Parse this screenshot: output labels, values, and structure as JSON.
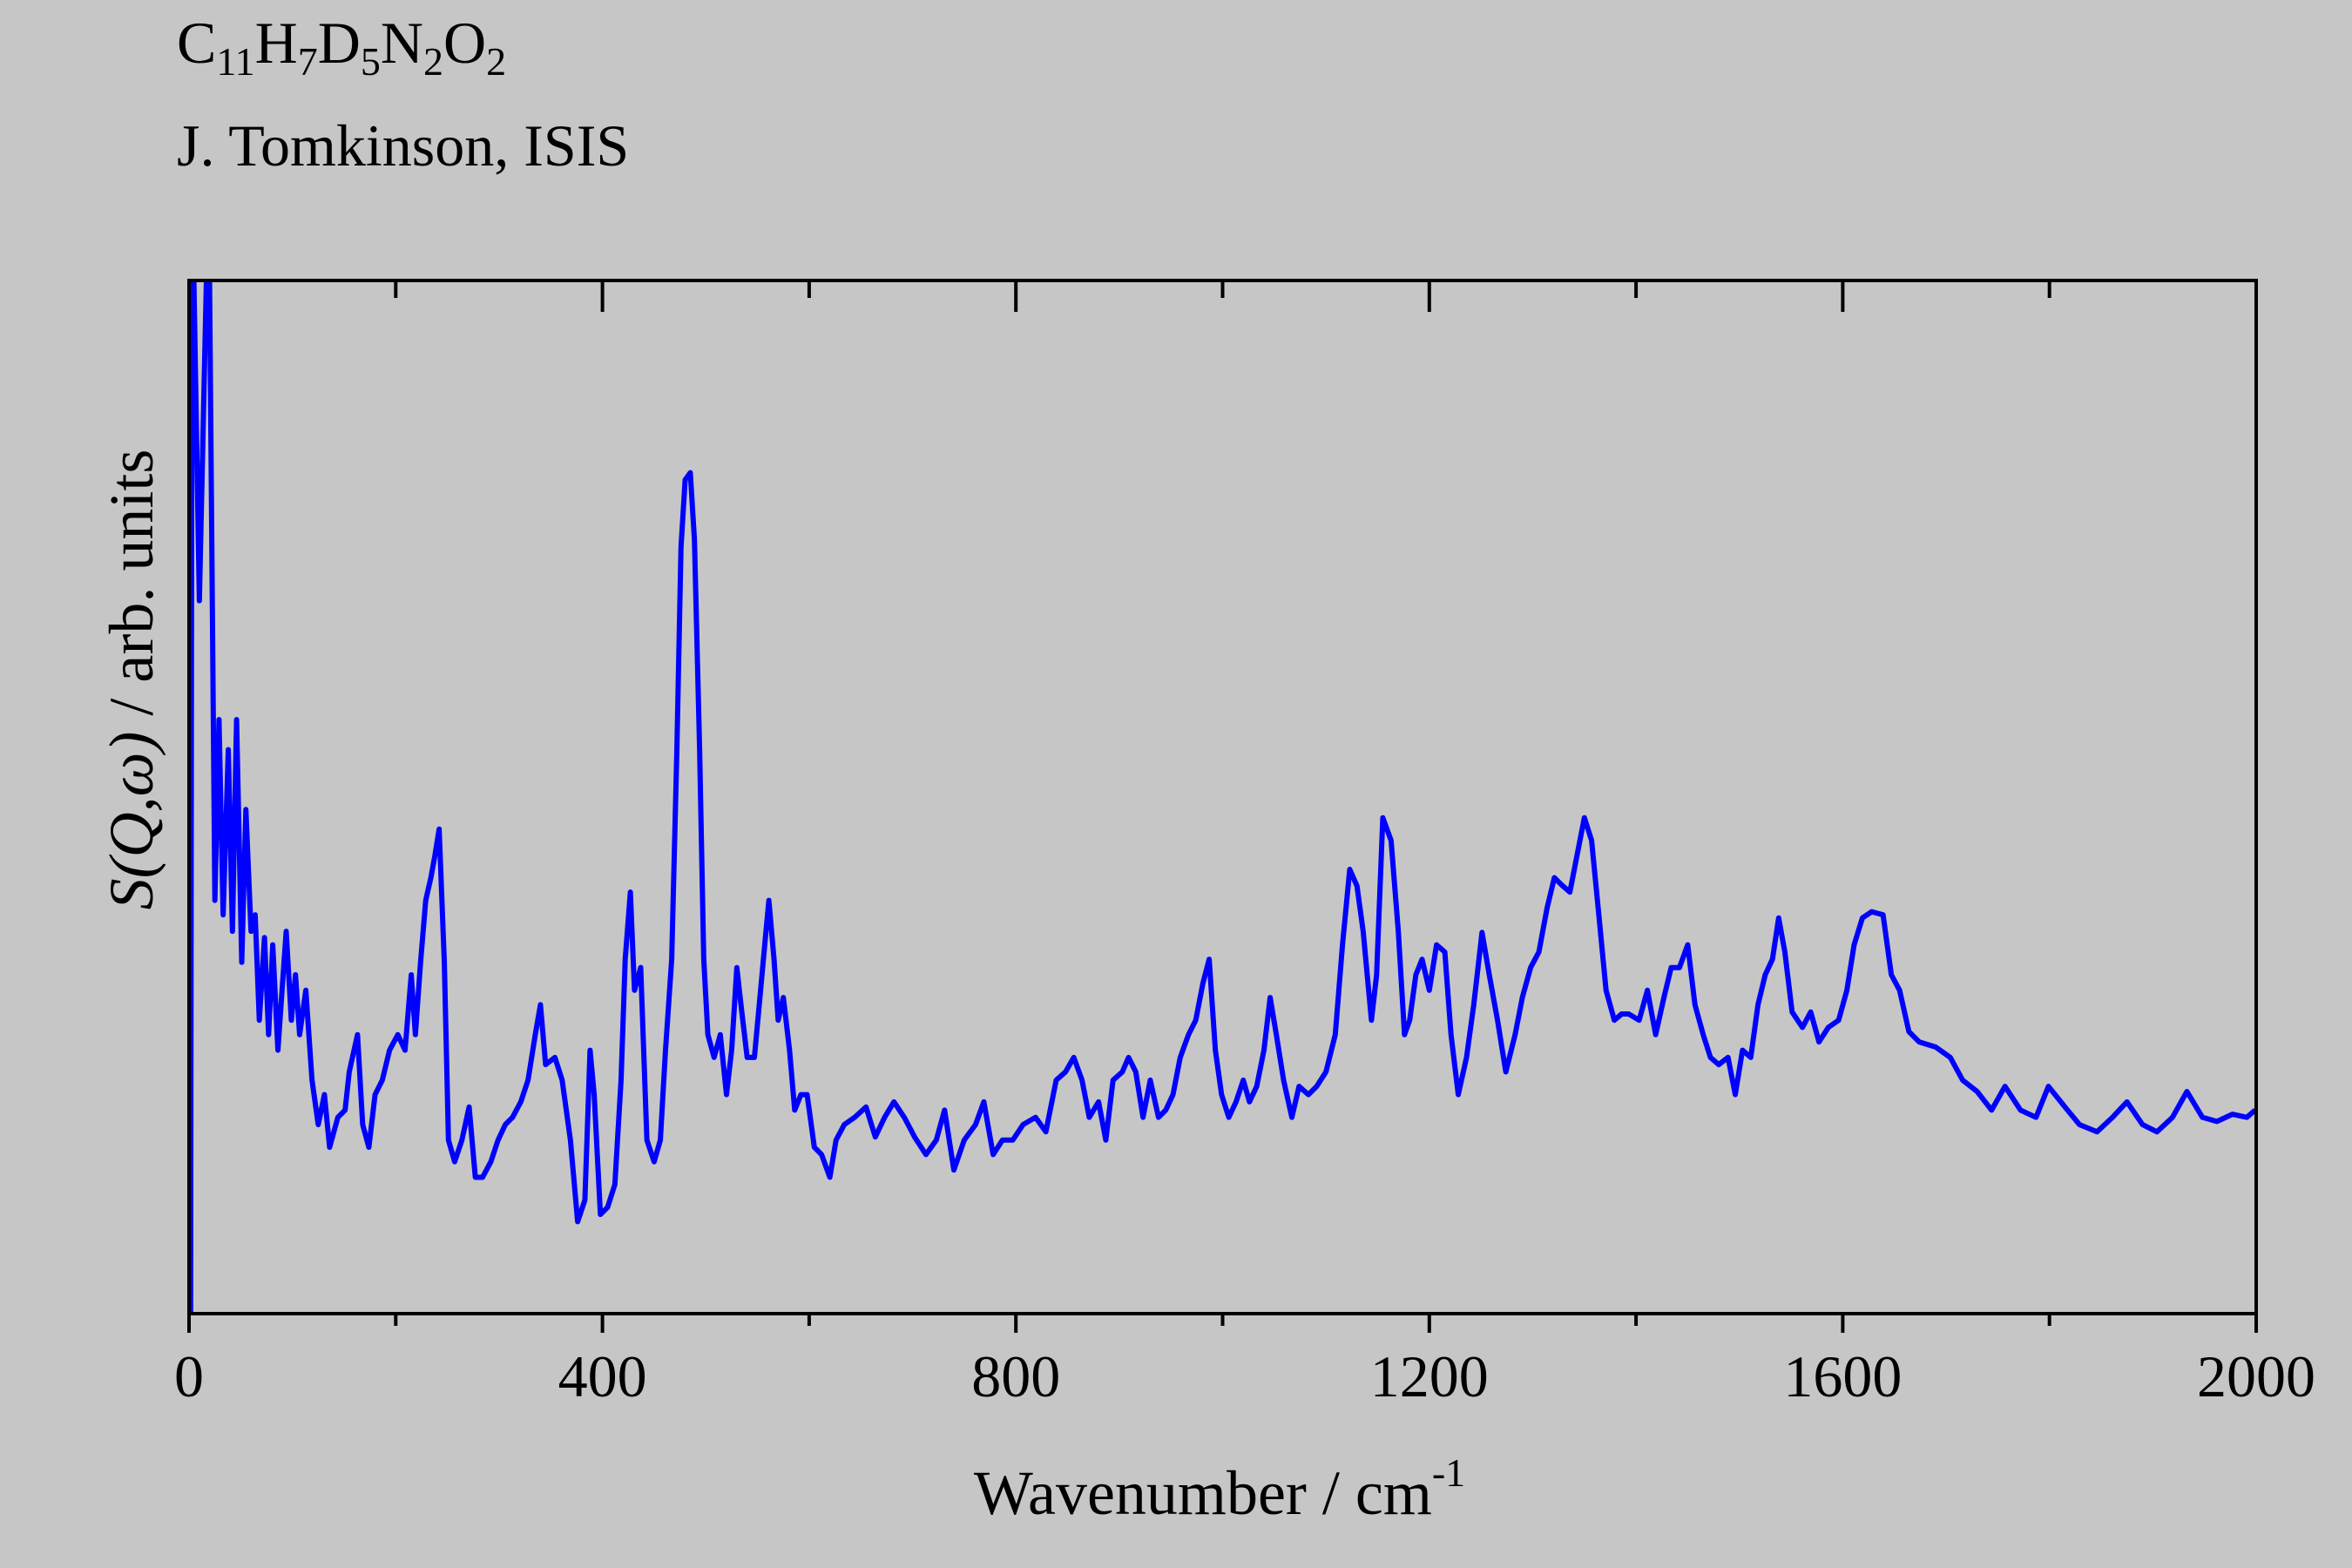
{
  "chart_data": {
    "type": "line",
    "title_parts": [
      {
        "text": "C",
        "sub": "11"
      },
      {
        "text": "H",
        "sub": "7"
      },
      {
        "text": "D",
        "sub": "5"
      },
      {
        "text": "N",
        "sub": "2"
      },
      {
        "text": "O",
        "sub": "2"
      }
    ],
    "subtitle": "J. Tomkinson, ISIS",
    "x_label": "Wavenumber / cm",
    "x_label_sup": "-1",
    "y_label_italic": "S(Q,ω)",
    "y_label": "/ arb. units",
    "xlim": [
      0,
      2000
    ],
    "ylim": [
      0,
      100
    ],
    "xticks": [
      0,
      400,
      800,
      1200,
      1600,
      2000
    ],
    "xminor_ticks": [
      200,
      600,
      1000,
      1400,
      1800
    ],
    "series": [
      {
        "color": "#0000ff",
        "x": [
          1.5,
          3,
          10,
          19,
          25,
          29,
          33,
          38,
          42,
          46,
          51,
          55,
          60,
          64,
          68,
          73,
          77,
          81,
          86,
          90,
          94,
          99,
          103,
          107,
          113,
          119,
          125,
          131,
          136,
          144,
          151,
          155,
          163,
          168,
          174,
          180,
          187,
          194,
          202,
          209,
          215,
          219,
          224,
          229,
          234,
          238,
          242,
          247,
          251,
          257,
          264,
          271,
          277,
          284,
          292,
          299,
          306,
          313,
          321,
          328,
          335,
          340,
          345,
          354,
          361,
          369,
          376,
          383,
          388,
          392,
          398,
          405,
          412,
          418,
          422,
          427,
          431,
          437,
          443,
          450,
          456,
          461,
          467,
          472,
          476,
          480,
          485,
          489,
          494,
          498,
          502,
          508,
          514,
          520,
          525,
          530,
          534,
          540,
          547,
          553,
          557,
          561,
          566,
          570,
          575,
          581,
          586,
          592,
          598,
          605,
          612,
          620,
          626,
          634,
          644,
          655,
          664,
          673,
          682,
          692,
          702,
          713,
          723,
          731,
          740,
          750,
          761,
          769,
          778,
          787,
          797,
          807,
          819,
          829,
          839,
          848,
          856,
          864,
          871,
          880,
          887,
          894,
          903,
          909,
          916,
          923,
          930,
          938,
          945,
          952,
          959,
          967,
          974,
          981,
          987,
          993,
          999,
          1006,
          1013,
          1020,
          1026,
          1033,
          1040,
          1046,
          1052,
          1059,
          1067,
          1074,
          1083,
          1091,
          1100,
          1109,
          1116,
          1123,
          1130,
          1136,
          1144,
          1149,
          1155,
          1163,
          1170,
          1176,
          1181,
          1187,
          1193,
          1200,
          1207,
          1215,
          1221,
          1228,
          1236,
          1243,
          1251,
          1258,
          1266,
          1274,
          1283,
          1290,
          1298,
          1306,
          1314,
          1321,
          1328,
          1336,
          1343,
          1350,
          1357,
          1364,
          1371,
          1379,
          1386,
          1393,
          1403,
          1411,
          1419,
          1427,
          1434,
          1442,
          1450,
          1457,
          1465,
          1472,
          1480,
          1489,
          1496,
          1503,
          1511,
          1518,
          1525,
          1532,
          1538,
          1544,
          1551,
          1561,
          1569,
          1577,
          1586,
          1596,
          1604,
          1611,
          1619,
          1628,
          1639,
          1647,
          1655,
          1664,
          1674,
          1690,
          1704,
          1716,
          1730,
          1744,
          1757,
          1772,
          1787,
          1799,
          1815,
          1829,
          1846,
          1861,
          1875,
          1890,
          1904,
          1919,
          1933,
          1948,
          1962,
          1977,
          1991,
          1999
        ],
        "values": [
          0,
          110,
          69,
          110,
          40,
          57.5,
          38.6,
          54.6,
          37,
          57.5,
          34,
          48.8,
          37,
          38.6,
          28.4,
          36.4,
          27,
          35.7,
          25.5,
          31.3,
          37,
          28.4,
          32.8,
          27,
          31.3,
          22.6,
          18.3,
          21.2,
          16.1,
          19,
          19.7,
          23.4,
          27,
          18.3,
          16.1,
          21.2,
          22.6,
          25.5,
          27,
          25.5,
          32.8,
          27,
          34,
          40,
          42.2,
          44.4,
          46.9,
          34,
          16.8,
          14.7,
          16.8,
          20,
          13.2,
          13.2,
          14.7,
          16.8,
          18.3,
          19,
          20.5,
          22.6,
          27,
          29.9,
          24.1,
          24.8,
          22.6,
          16.8,
          8.9,
          11,
          25.5,
          21.2,
          9.6,
          10.3,
          12.5,
          22.6,
          34.3,
          40.8,
          31.3,
          33.5,
          16.8,
          14.7,
          16.8,
          25.5,
          34.3,
          54.6,
          74.2,
          80.7,
          81.4,
          74.9,
          54.6,
          34.3,
          27,
          24.8,
          27,
          21.2,
          25.5,
          33.5,
          29.9,
          24.8,
          24.8,
          31.3,
          35.7,
          40,
          34.3,
          28.4,
          30.6,
          25.5,
          19.7,
          21.2,
          21.2,
          16.1,
          15.4,
          13.2,
          16.8,
          18.3,
          19,
          20,
          17.1,
          19,
          20.5,
          19,
          17.1,
          15.4,
          16.8,
          19.7,
          13.9,
          16.8,
          18.3,
          20.5,
          15.4,
          16.8,
          16.8,
          18.3,
          19,
          17.6,
          22.6,
          23.4,
          24.8,
          22.6,
          19,
          20.5,
          16.8,
          22.6,
          23.4,
          24.8,
          23.4,
          19,
          22.6,
          19,
          19.7,
          21.2,
          24.8,
          27,
          28.4,
          32,
          34.3,
          25.5,
          21.2,
          19,
          20.5,
          22.6,
          20.5,
          22,
          25.5,
          30.6,
          27,
          22.6,
          19,
          22,
          21.2,
          22,
          23.4,
          27,
          35.7,
          43,
          41.4,
          37,
          28.4,
          32.8,
          48,
          45.8,
          37,
          27,
          28.4,
          32.8,
          34.3,
          31.3,
          35.7,
          35,
          27,
          21.2,
          24.8,
          29.9,
          36.9,
          32.8,
          28.4,
          23.4,
          27,
          30.6,
          33.5,
          35,
          39.3,
          42.2,
          41.5,
          40.8,
          44.4,
          48,
          45.8,
          38.6,
          31.3,
          28.4,
          29,
          29,
          28.4,
          31.3,
          27,
          30.6,
          33.5,
          33.5,
          35.7,
          29.9,
          27,
          24.8,
          24.1,
          24.8,
          21.2,
          25.5,
          24.8,
          29.9,
          32.8,
          34.3,
          38.3,
          35,
          29.2,
          27.7,
          29.2,
          26.3,
          27.7,
          28.4,
          31.3,
          35.7,
          38.3,
          38.9,
          38.6,
          32.8,
          31.3,
          27.3,
          26.3,
          25.8,
          24.8,
          22.6,
          21.5,
          19.7,
          22,
          19.7,
          19,
          22,
          20,
          18.3,
          17.6,
          19,
          20.5,
          18.3,
          17.6,
          19,
          21.5,
          19,
          18.6,
          19.3,
          19,
          19.7
        ]
      }
    ]
  }
}
